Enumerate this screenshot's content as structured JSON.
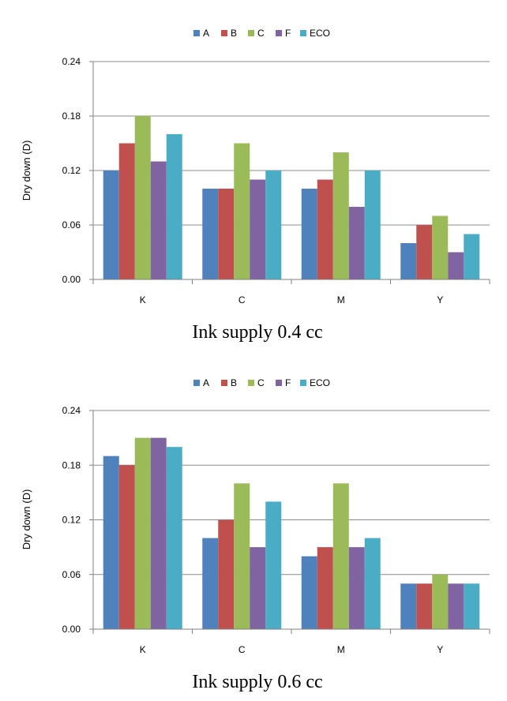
{
  "chart_data": [
    {
      "type": "bar",
      "caption": "Ink supply 0.4 cc",
      "ylabel": "Dry down (D)",
      "ylim": [
        0,
        0.24
      ],
      "yticks": [
        "0.00",
        "0.06",
        "0.12",
        "0.18",
        "0.24"
      ],
      "categories": [
        "K",
        "C",
        "M",
        "Y"
      ],
      "legend_position": "top",
      "grid": true,
      "series": [
        {
          "name": "A",
          "color": "#4F81BD",
          "values": [
            0.12,
            0.1,
            0.1,
            0.04
          ]
        },
        {
          "name": "B",
          "color": "#C0504D",
          "values": [
            0.15,
            0.1,
            0.11,
            0.06
          ]
        },
        {
          "name": "C",
          "color": "#9BBB59",
          "values": [
            0.18,
            0.15,
            0.14,
            0.07
          ]
        },
        {
          "name": "F",
          "color": "#8064A2",
          "values": [
            0.13,
            0.11,
            0.08,
            0.03
          ]
        },
        {
          "name": "ECO",
          "color": "#4BACC6",
          "values": [
            0.16,
            0.12,
            0.12,
            0.05
          ]
        }
      ]
    },
    {
      "type": "bar",
      "caption": "Ink supply 0.6 cc",
      "ylabel": "Dry down (D)",
      "ylim": [
        0,
        0.24
      ],
      "yticks": [
        "0.00",
        "0.06",
        "0.12",
        "0.18",
        "0.24"
      ],
      "categories": [
        "K",
        "C",
        "M",
        "Y"
      ],
      "legend_position": "top",
      "grid": true,
      "series": [
        {
          "name": "A",
          "color": "#4F81BD",
          "values": [
            0.19,
            0.1,
            0.08,
            0.05
          ]
        },
        {
          "name": "B",
          "color": "#C0504D",
          "values": [
            0.18,
            0.12,
            0.09,
            0.05
          ]
        },
        {
          "name": "C",
          "color": "#9BBB59",
          "values": [
            0.21,
            0.16,
            0.16,
            0.06
          ]
        },
        {
          "name": "F",
          "color": "#8064A2",
          "values": [
            0.21,
            0.09,
            0.09,
            0.05
          ]
        },
        {
          "name": "ECO",
          "color": "#4BACC6",
          "values": [
            0.2,
            0.14,
            0.1,
            0.05
          ]
        }
      ]
    }
  ]
}
